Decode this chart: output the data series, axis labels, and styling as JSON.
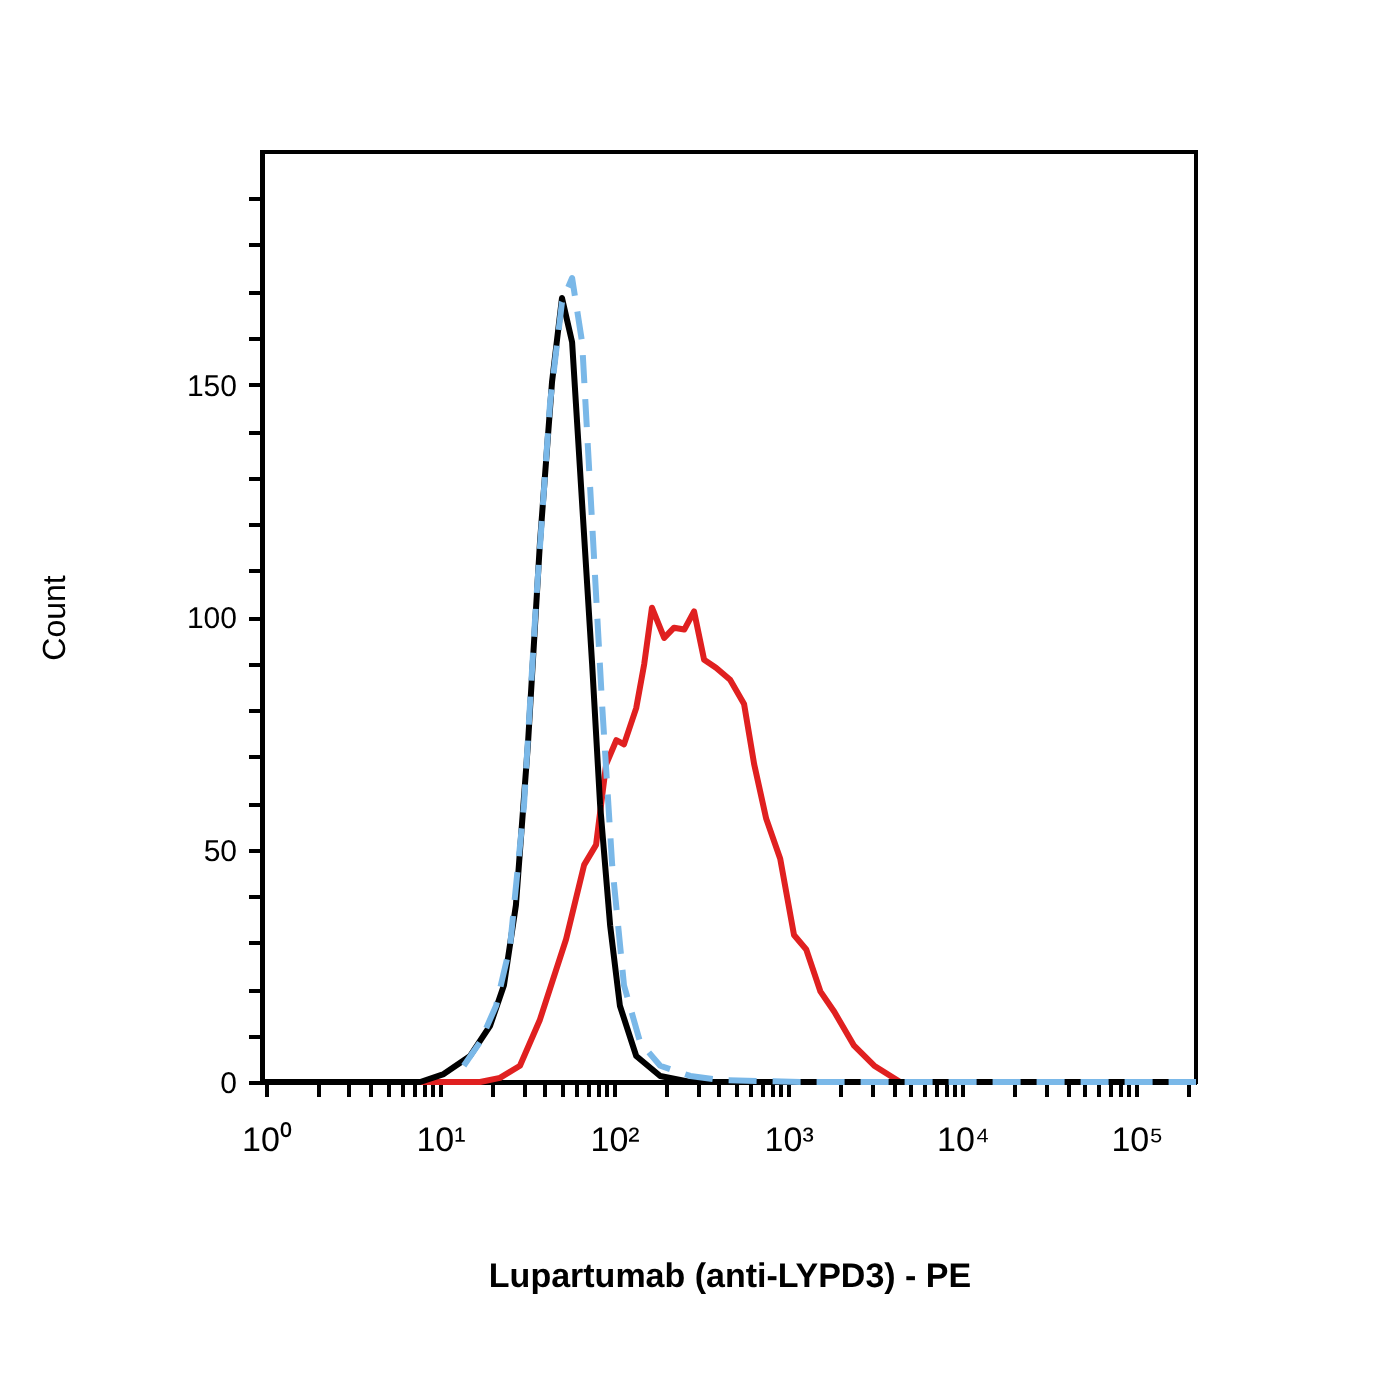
{
  "chart_data": {
    "type": "line",
    "xlabel": "Lupartumab (anti-LYPD3) - PE",
    "ylabel": "Count",
    "log": "x",
    "grid": false,
    "legend": false,
    "marker": "none",
    "xlim": [
      0.95,
      220000
    ],
    "ylim": [
      0,
      200
    ],
    "xticks": [
      {
        "value": 1,
        "label": "10⁰"
      },
      {
        "value": 2,
        "label": null
      },
      {
        "value": 3,
        "label": null
      },
      {
        "value": 4,
        "label": null
      },
      {
        "value": 5,
        "label": null
      },
      {
        "value": 6,
        "label": null
      },
      {
        "value": 7,
        "label": null
      },
      {
        "value": 8,
        "label": null
      },
      {
        "value": 9,
        "label": null
      },
      {
        "value": 10,
        "label": "10¹"
      },
      {
        "value": 20,
        "label": null
      },
      {
        "value": 30,
        "label": null
      },
      {
        "value": 40,
        "label": null
      },
      {
        "value": 50,
        "label": null
      },
      {
        "value": 60,
        "label": null
      },
      {
        "value": 70,
        "label": null
      },
      {
        "value": 80,
        "label": null
      },
      {
        "value": 90,
        "label": null
      },
      {
        "value": 100,
        "label": "10²"
      },
      {
        "value": 200,
        "label": null
      },
      {
        "value": 300,
        "label": null
      },
      {
        "value": 400,
        "label": null
      },
      {
        "value": 500,
        "label": null
      },
      {
        "value": 600,
        "label": null
      },
      {
        "value": 700,
        "label": null
      },
      {
        "value": 800,
        "label": null
      },
      {
        "value": 900,
        "label": null
      },
      {
        "value": 1000,
        "label": "10³"
      },
      {
        "value": 2000,
        "label": null
      },
      {
        "value": 3000,
        "label": null
      },
      {
        "value": 4000,
        "label": null
      },
      {
        "value": 5000,
        "label": null
      },
      {
        "value": 6000,
        "label": null
      },
      {
        "value": 7000,
        "label": null
      },
      {
        "value": 8000,
        "label": null
      },
      {
        "value": 9000,
        "label": null
      },
      {
        "value": 10000,
        "label": "10⁴"
      },
      {
        "value": 20000,
        "label": null
      },
      {
        "value": 30000,
        "label": null
      },
      {
        "value": 40000,
        "label": null
      },
      {
        "value": 50000,
        "label": null
      },
      {
        "value": 60000,
        "label": null
      },
      {
        "value": 70000,
        "label": null
      },
      {
        "value": 80000,
        "label": null
      },
      {
        "value": 90000,
        "label": null
      },
      {
        "value": 100000,
        "label": "10⁵"
      },
      {
        "value": 200000,
        "label": null
      }
    ],
    "yticks": [
      0,
      {
        "value": 10,
        "label": null
      },
      {
        "value": 20,
        "label": null
      },
      {
        "value": 30,
        "label": null
      },
      {
        "value": 40,
        "label": null
      },
      50,
      {
        "value": 60,
        "label": null
      },
      {
        "value": 70,
        "label": null
      },
      {
        "value": 80,
        "label": null
      },
      {
        "value": 90,
        "label": null
      },
      100,
      {
        "value": 110,
        "label": null
      },
      {
        "value": 120,
        "label": null
      },
      {
        "value": 130,
        "label": null
      },
      {
        "value": 140,
        "label": null
      },
      150,
      {
        "value": 160,
        "label": null
      },
      {
        "value": 170,
        "label": null
      },
      {
        "value": 180,
        "label": null
      },
      {
        "value": 190,
        "label": null
      }
    ],
    "series": [
      {
        "color": "#e02020",
        "line_style": "solid",
        "x": [
          0.95,
          17,
          22.1,
          28.8,
          37.5,
          53,
          67.3,
          78.8,
          90,
          103,
          114,
          134,
          149,
          165,
          194,
          221,
          253,
          288,
          329,
          385,
          464,
          558,
          638,
          748,
          900,
          1080,
          1270,
          1530,
          1840,
          2390,
          3120,
          4400,
          6900,
          220000
        ],
        "values": [
          0,
          0,
          0.9,
          3.5,
          13.4,
          30.7,
          46.7,
          51,
          68.3,
          73.5,
          72.6,
          80.4,
          89.9,
          102,
          95.5,
          97.7,
          97.3,
          101.2,
          90.8,
          89.1,
          86.5,
          81.3,
          68.3,
          56.6,
          48,
          31.6,
          28.5,
          19.5,
          15.1,
          7.8,
          3.5,
          0,
          0,
          0
        ]
      },
      {
        "color": "#000000",
        "line_style": "solid",
        "x": [
          0.95,
          7.7,
          10.5,
          14.9,
          19.4,
          23.3,
          27.3,
          32,
          37.5,
          44,
          50.2,
          57.4,
          65.5,
          74.8,
          83.1,
          94.9,
          108,
          134,
          184,
          274,
          220000
        ],
        "values": [
          0,
          0,
          1.7,
          5.6,
          12.1,
          20.8,
          38,
          72.6,
          115.9,
          150.5,
          168.6,
          159.1,
          124.5,
          89.9,
          59.7,
          33.7,
          16.4,
          5.6,
          1.3,
          0,
          0
        ]
      },
      {
        "color": "#7ab8e8",
        "line_style": "dashed",
        "x": [
          13.7,
          17,
          21,
          25.3,
          30.4,
          35.6,
          42.9,
          50.2,
          57.4,
          65.5,
          74.8,
          85.3,
          97.5,
          114,
          141,
          184,
          274,
          407,
          1170,
          220000
        ],
        "values": [
          3.5,
          8.6,
          16.4,
          29.4,
          59.7,
          102.9,
          146.1,
          167.7,
          172.9,
          159.1,
          120.2,
          81.3,
          46.7,
          20.8,
          8.6,
          3.5,
          1.3,
          0.4,
          0,
          0
        ]
      }
    ]
  }
}
